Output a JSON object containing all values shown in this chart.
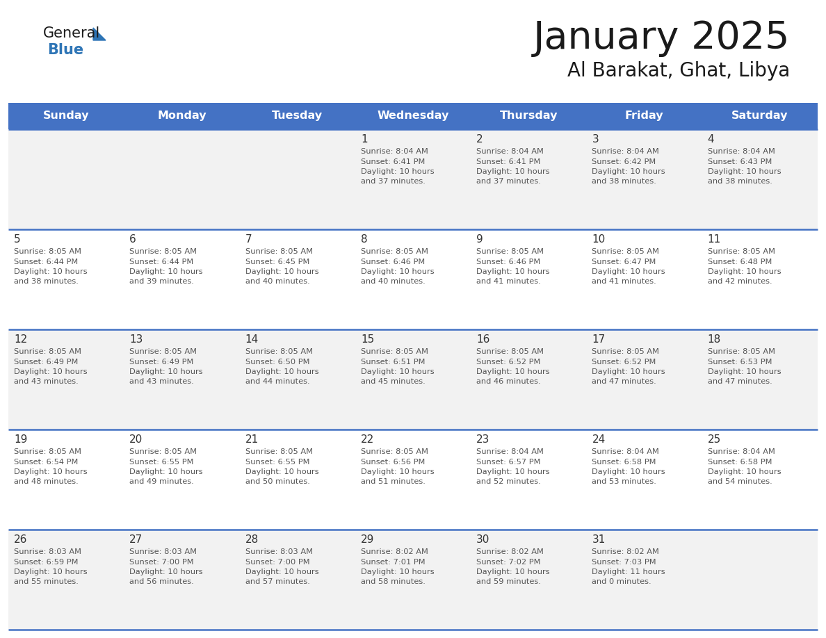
{
  "title": "January 2025",
  "subtitle": "Al Barakat, Ghat, Libya",
  "days_of_week": [
    "Sunday",
    "Monday",
    "Tuesday",
    "Wednesday",
    "Thursday",
    "Friday",
    "Saturday"
  ],
  "header_bg": "#4472C4",
  "header_text": "#FFFFFF",
  "row_bg_odd": "#F2F2F2",
  "row_bg_even": "#FFFFFF",
  "cell_border": "#4472C4",
  "day_number_color": "#333333",
  "text_color": "#555555",
  "calendar_data": [
    [
      null,
      null,
      null,
      {
        "day": 1,
        "sunrise": "8:04 AM",
        "sunset": "6:41 PM",
        "daylight": "10 hours and 37 minutes."
      },
      {
        "day": 2,
        "sunrise": "8:04 AM",
        "sunset": "6:41 PM",
        "daylight": "10 hours and 37 minutes."
      },
      {
        "day": 3,
        "sunrise": "8:04 AM",
        "sunset": "6:42 PM",
        "daylight": "10 hours and 38 minutes."
      },
      {
        "day": 4,
        "sunrise": "8:04 AM",
        "sunset": "6:43 PM",
        "daylight": "10 hours and 38 minutes."
      }
    ],
    [
      {
        "day": 5,
        "sunrise": "8:05 AM",
        "sunset": "6:44 PM",
        "daylight": "10 hours and 38 minutes."
      },
      {
        "day": 6,
        "sunrise": "8:05 AM",
        "sunset": "6:44 PM",
        "daylight": "10 hours and 39 minutes."
      },
      {
        "day": 7,
        "sunrise": "8:05 AM",
        "sunset": "6:45 PM",
        "daylight": "10 hours and 40 minutes."
      },
      {
        "day": 8,
        "sunrise": "8:05 AM",
        "sunset": "6:46 PM",
        "daylight": "10 hours and 40 minutes."
      },
      {
        "day": 9,
        "sunrise": "8:05 AM",
        "sunset": "6:46 PM",
        "daylight": "10 hours and 41 minutes."
      },
      {
        "day": 10,
        "sunrise": "8:05 AM",
        "sunset": "6:47 PM",
        "daylight": "10 hours and 41 minutes."
      },
      {
        "day": 11,
        "sunrise": "8:05 AM",
        "sunset": "6:48 PM",
        "daylight": "10 hours and 42 minutes."
      }
    ],
    [
      {
        "day": 12,
        "sunrise": "8:05 AM",
        "sunset": "6:49 PM",
        "daylight": "10 hours and 43 minutes."
      },
      {
        "day": 13,
        "sunrise": "8:05 AM",
        "sunset": "6:49 PM",
        "daylight": "10 hours and 43 minutes."
      },
      {
        "day": 14,
        "sunrise": "8:05 AM",
        "sunset": "6:50 PM",
        "daylight": "10 hours and 44 minutes."
      },
      {
        "day": 15,
        "sunrise": "8:05 AM",
        "sunset": "6:51 PM",
        "daylight": "10 hours and 45 minutes."
      },
      {
        "day": 16,
        "sunrise": "8:05 AM",
        "sunset": "6:52 PM",
        "daylight": "10 hours and 46 minutes."
      },
      {
        "day": 17,
        "sunrise": "8:05 AM",
        "sunset": "6:52 PM",
        "daylight": "10 hours and 47 minutes."
      },
      {
        "day": 18,
        "sunrise": "8:05 AM",
        "sunset": "6:53 PM",
        "daylight": "10 hours and 47 minutes."
      }
    ],
    [
      {
        "day": 19,
        "sunrise": "8:05 AM",
        "sunset": "6:54 PM",
        "daylight": "10 hours and 48 minutes."
      },
      {
        "day": 20,
        "sunrise": "8:05 AM",
        "sunset": "6:55 PM",
        "daylight": "10 hours and 49 minutes."
      },
      {
        "day": 21,
        "sunrise": "8:05 AM",
        "sunset": "6:55 PM",
        "daylight": "10 hours and 50 minutes."
      },
      {
        "day": 22,
        "sunrise": "8:05 AM",
        "sunset": "6:56 PM",
        "daylight": "10 hours and 51 minutes."
      },
      {
        "day": 23,
        "sunrise": "8:04 AM",
        "sunset": "6:57 PM",
        "daylight": "10 hours and 52 minutes."
      },
      {
        "day": 24,
        "sunrise": "8:04 AM",
        "sunset": "6:58 PM",
        "daylight": "10 hours and 53 minutes."
      },
      {
        "day": 25,
        "sunrise": "8:04 AM",
        "sunset": "6:58 PM",
        "daylight": "10 hours and 54 minutes."
      }
    ],
    [
      {
        "day": 26,
        "sunrise": "8:03 AM",
        "sunset": "6:59 PM",
        "daylight": "10 hours and 55 minutes."
      },
      {
        "day": 27,
        "sunrise": "8:03 AM",
        "sunset": "7:00 PM",
        "daylight": "10 hours and 56 minutes."
      },
      {
        "day": 28,
        "sunrise": "8:03 AM",
        "sunset": "7:00 PM",
        "daylight": "10 hours and 57 minutes."
      },
      {
        "day": 29,
        "sunrise": "8:02 AM",
        "sunset": "7:01 PM",
        "daylight": "10 hours and 58 minutes."
      },
      {
        "day": 30,
        "sunrise": "8:02 AM",
        "sunset": "7:02 PM",
        "daylight": "10 hours and 59 minutes."
      },
      {
        "day": 31,
        "sunrise": "8:02 AM",
        "sunset": "7:03 PM",
        "daylight": "11 hours and 0 minutes."
      },
      null
    ]
  ],
  "logo_color_general": "#1a1a1a",
  "logo_color_blue": "#2E75B6",
  "fig_width": 11.88,
  "fig_height": 9.18,
  "dpi": 100
}
